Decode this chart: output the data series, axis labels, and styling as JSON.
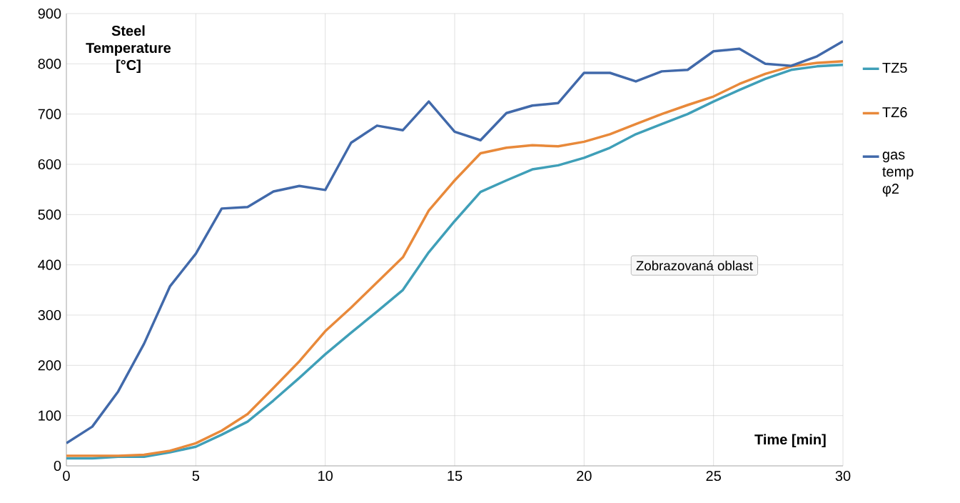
{
  "chart_data": {
    "type": "line",
    "xlabel": "Time [min]",
    "ylabel": "Steel Temperature [°C]",
    "x": [
      0,
      1,
      2,
      3,
      4,
      5,
      6,
      7,
      8,
      9,
      10,
      11,
      12,
      13,
      14,
      15,
      16,
      17,
      18,
      19,
      20,
      21,
      22,
      23,
      24,
      25,
      26,
      27,
      28,
      29,
      30
    ],
    "series": [
      {
        "name": "TZ5",
        "color": "#3f9fb8",
        "values": [
          15,
          15,
          18,
          18,
          27,
          38,
          62,
          88,
          130,
          175,
          222,
          265,
          307,
          350,
          425,
          487,
          545,
          568,
          590,
          598,
          613,
          633,
          660,
          680,
          700,
          725,
          748,
          770,
          788,
          795,
          798
        ]
      },
      {
        "name": "TZ6",
        "color": "#e8893a",
        "values": [
          20,
          20,
          20,
          22,
          30,
          45,
          70,
          103,
          155,
          208,
          268,
          315,
          365,
          415,
          508,
          568,
          622,
          633,
          638,
          636,
          645,
          660,
          680,
          700,
          718,
          735,
          760,
          780,
          795,
          802,
          805
        ]
      },
      {
        "name": "gas temp φ2",
        "color": "#4169aa",
        "values": [
          45,
          78,
          148,
          243,
          357,
          422,
          512,
          515,
          546,
          557,
          549,
          643,
          677,
          668,
          725,
          665,
          648,
          702,
          717,
          722,
          782,
          782,
          765,
          785,
          788,
          825,
          830,
          800,
          796,
          815,
          845
        ]
      }
    ],
    "xlim": [
      0,
      30
    ],
    "xticks": [
      0,
      5,
      10,
      15,
      20,
      25,
      30
    ],
    "ylim": [
      0,
      900
    ],
    "yticks": [
      0,
      100,
      200,
      300,
      400,
      500,
      600,
      700,
      800,
      900
    ],
    "grid": true,
    "legend": "right",
    "marker": "none",
    "line_style": "solid",
    "annotations": [
      "Zobrazovaná oblast"
    ]
  }
}
